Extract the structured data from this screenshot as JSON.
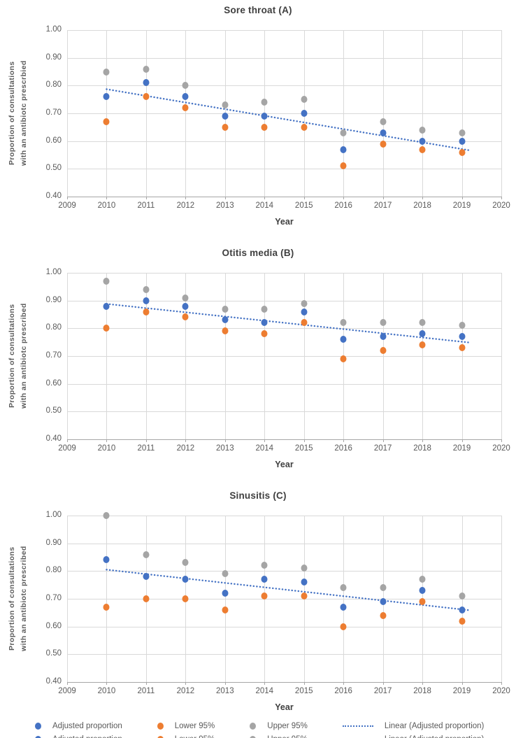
{
  "figure": {
    "background": "#ffffff",
    "n_charts": 3
  },
  "colors": {
    "adjusted_proportion": "#4472C4",
    "lower_95": "#ED7D31",
    "upper_95": "#A5A5A5",
    "trendline": "#4472C4",
    "gridline": "#D9D9D9",
    "axis_line": "#A6A6A6",
    "tick_text": "#595959",
    "title_text": "#3F3F3F"
  },
  "legend": {
    "position": "bottom",
    "items": [
      {
        "label": "Adjusted proportion",
        "marker": "dot",
        "color": "#4472C4"
      },
      {
        "label": "Lower 95%",
        "marker": "dot",
        "color": "#ED7D31"
      },
      {
        "label": "Upper 95%",
        "marker": "dot",
        "color": "#A5A5A5"
      },
      {
        "label": "Linear (Adjusted proportion)",
        "marker": "dotted-line",
        "color": "#4472C4"
      }
    ]
  },
  "chart_data": [
    {
      "type": "scatter",
      "title": "Sore throat (A)",
      "ylabel": [
        "Proportion of consultations",
        "with an antibiotc prescrbied"
      ],
      "xlabel": "Year",
      "xlim": [
        2009,
        2020
      ],
      "ylim": [
        0.4,
        1.0
      ],
      "grid": true,
      "xticks": [
        "2009",
        "2010",
        "2011",
        "2012",
        "2013",
        "2014",
        "2015",
        "2016",
        "2017",
        "2018",
        "2019",
        "2020"
      ],
      "yticks": [
        "1.00",
        "0.90",
        "0.80",
        "0.70",
        "0.60",
        "0.50",
        "0.40"
      ],
      "x": [
        2010,
        2011,
        2012,
        2013,
        2014,
        2015,
        2016,
        2017,
        2018,
        2019
      ],
      "series": [
        {
          "name": "Adjusted proportion",
          "color": "#4472C4",
          "values": [
            0.76,
            0.81,
            0.76,
            0.69,
            0.69,
            0.7,
            0.57,
            0.63,
            0.6,
            0.6
          ]
        },
        {
          "name": "Lower 95%",
          "color": "#ED7D31",
          "values": [
            0.67,
            0.76,
            0.72,
            0.65,
            0.65,
            0.65,
            0.51,
            0.59,
            0.57,
            0.56
          ]
        },
        {
          "name": "Upper 95%",
          "color": "#A5A5A5",
          "values": [
            0.85,
            0.86,
            0.8,
            0.73,
            0.74,
            0.75,
            0.63,
            0.67,
            0.64,
            0.63
          ]
        }
      ],
      "trendline": {
        "name": "Linear (Adjusted proportion)",
        "style": "dotted",
        "color": "#4472C4",
        "x_start": 2010,
        "y_start": 0.787,
        "x_end": 2019,
        "y_end": 0.573
      }
    },
    {
      "type": "scatter",
      "title": "Otitis media (B)",
      "ylabel": [
        "Proportion of consultations",
        "with an antibiotc prescribed"
      ],
      "xlabel": "Year",
      "xlim": [
        2009,
        2020
      ],
      "ylim": [
        0.4,
        1.0
      ],
      "grid": true,
      "xticks": [
        "2009",
        "2010",
        "2011",
        "2012",
        "2013",
        "2014",
        "2015",
        "2016",
        "2017",
        "2018",
        "2019",
        "2020"
      ],
      "yticks": [
        "1.00",
        "0.90",
        "0.80",
        "0.70",
        "0.60",
        "0.50",
        "0.40"
      ],
      "x": [
        2010,
        2011,
        2012,
        2013,
        2014,
        2015,
        2016,
        2017,
        2018,
        2019
      ],
      "series": [
        {
          "name": "Adjusted proportion",
          "color": "#4472C4",
          "values": [
            0.88,
            0.9,
            0.88,
            0.83,
            0.82,
            0.86,
            0.76,
            0.77,
            0.78,
            0.77
          ]
        },
        {
          "name": "Lower 95%",
          "color": "#ED7D31",
          "values": [
            0.8,
            0.86,
            0.84,
            0.79,
            0.78,
            0.82,
            0.69,
            0.72,
            0.74,
            0.73
          ]
        },
        {
          "name": "Upper 95%",
          "color": "#A5A5A5",
          "values": [
            0.97,
            0.94,
            0.91,
            0.87,
            0.87,
            0.89,
            0.82,
            0.82,
            0.82,
            0.81
          ]
        }
      ],
      "trendline": {
        "name": "Linear (Adjusted proportion)",
        "style": "dotted",
        "color": "#4472C4",
        "x_start": 2010,
        "y_start": 0.888,
        "x_end": 2019,
        "y_end": 0.755
      }
    },
    {
      "type": "scatter",
      "title": "Sinusitis (C)",
      "ylabel": [
        "Proportion of consultations",
        "with an antibiotc prescribed"
      ],
      "xlabel": "Year",
      "xlim": [
        2009,
        2020
      ],
      "ylim": [
        0.4,
        1.0
      ],
      "grid": true,
      "xticks": [
        "2009",
        "2010",
        "2011",
        "2012",
        "2013",
        "2014",
        "2015",
        "2016",
        "2017",
        "2018",
        "2019",
        "2020"
      ],
      "yticks": [
        "1.00",
        "0.90",
        "0.80",
        "0.70",
        "0.60",
        "0.50",
        "0.40"
      ],
      "x": [
        2010,
        2011,
        2012,
        2013,
        2014,
        2015,
        2016,
        2017,
        2018,
        2019
      ],
      "series": [
        {
          "name": "Adjusted proportion",
          "color": "#4472C4",
          "values": [
            0.84,
            0.78,
            0.77,
            0.72,
            0.77,
            0.76,
            0.67,
            0.69,
            0.73,
            0.66
          ]
        },
        {
          "name": "Lower 95%",
          "color": "#ED7D31",
          "values": [
            0.67,
            0.7,
            0.7,
            0.66,
            0.71,
            0.71,
            0.6,
            0.64,
            0.69,
            0.62
          ]
        },
        {
          "name": "Upper 95%",
          "color": "#A5A5A5",
          "values": [
            1.0,
            0.86,
            0.83,
            0.79,
            0.82,
            0.81,
            0.74,
            0.74,
            0.77,
            0.71
          ]
        }
      ],
      "trendline": {
        "name": "Linear (Adjusted proportion)",
        "style": "dotted",
        "color": "#4472C4",
        "x_start": 2010,
        "y_start": 0.805,
        "x_end": 2019,
        "y_end": 0.665
      }
    }
  ]
}
